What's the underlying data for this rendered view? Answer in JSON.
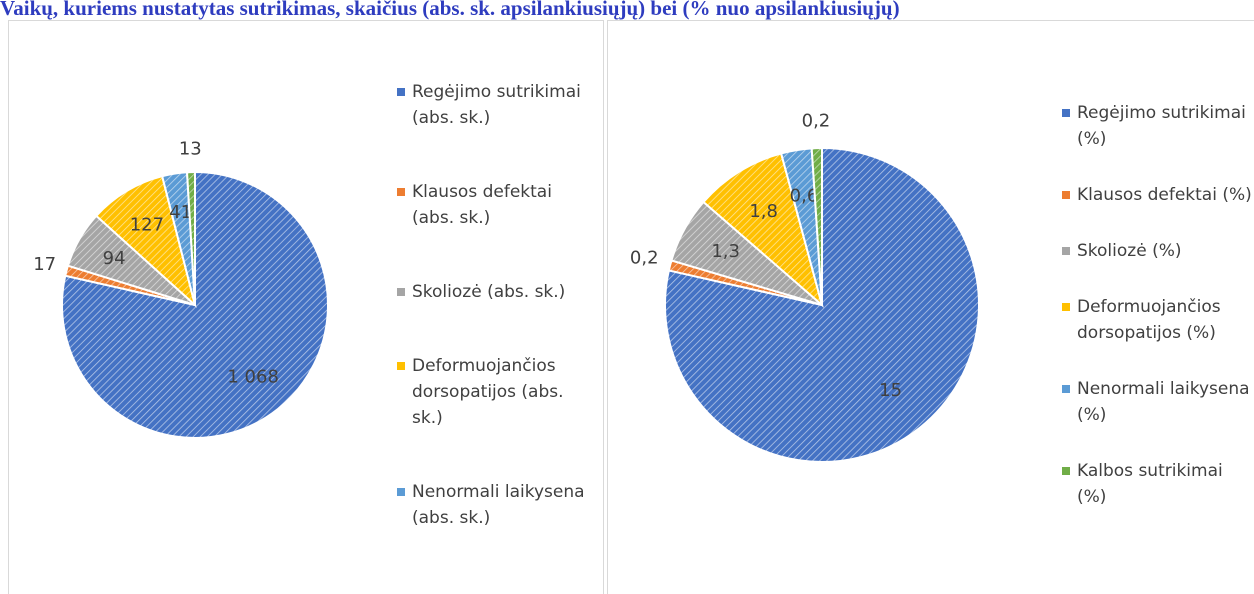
{
  "title": "Vaikų, kuriems nustatytas sutrikimas, skaičius (abs. sk. apsilankiusiųjų) bei (% nuo apsilankiusiųjų)",
  "chart_data": [
    {
      "type": "pie",
      "categories": [
        "Regėjimo sutrikimai (abs. sk.)",
        "Klausos defektai (abs. sk.)",
        "Skoliozė (abs. sk.)",
        "Deformuojančios dorsopatijos (abs. sk.)",
        "Nenormali laikysena (abs. sk.)",
        null
      ],
      "values": [
        1068,
        17,
        94,
        127,
        41,
        13
      ],
      "value_labels": [
        "1 068",
        "17",
        "94",
        "127",
        "41",
        "13"
      ],
      "colors": [
        "#4472c4",
        "#ed7d31",
        "#a5a5a5",
        "#ffc000",
        "#5b9bd5",
        "#70ad47"
      ]
    },
    {
      "type": "pie",
      "categories": [
        "Regėjimo sutrikimai (%)",
        "Klausos defektai (%)",
        "Skoliozė (%)",
        "Deformuojančios dorsopatijos (%)",
        "Nenormali laikysena (%)",
        "Kalbos sutrikimai (%)"
      ],
      "values": [
        15,
        0.2,
        1.3,
        1.8,
        0.6,
        0.2
      ],
      "value_labels": [
        "15",
        "0,2",
        "1,3",
        "1,8",
        "0,6",
        "0,2"
      ],
      "colors": [
        "#4472c4",
        "#ed7d31",
        "#a5a5a5",
        "#ffc000",
        "#5b9bd5",
        "#70ad47"
      ]
    }
  ]
}
